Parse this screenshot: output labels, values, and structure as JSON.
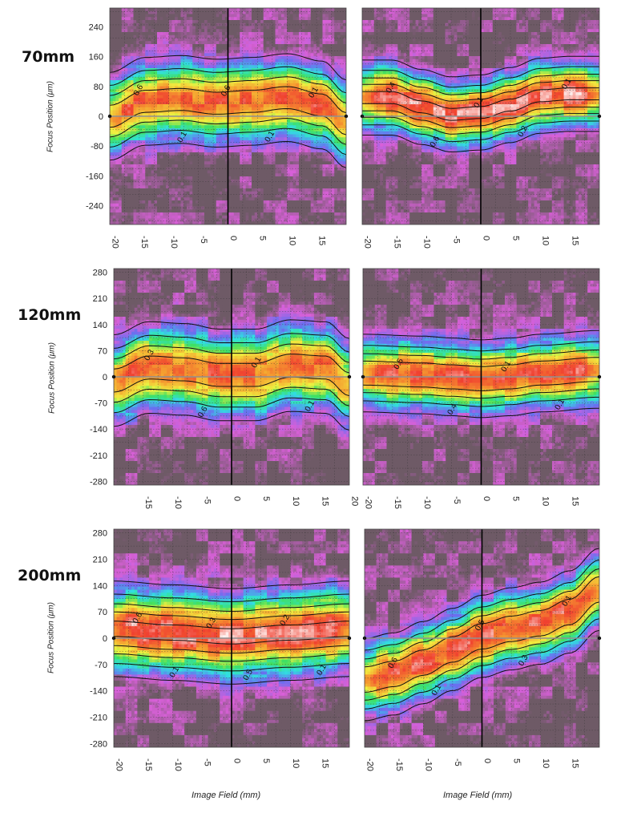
{
  "figure": {
    "x_axis_label": "Image Field (mm)",
    "y_axis_label": "Focus Position (μm)"
  },
  "rows": [
    {
      "label": "70mm"
    },
    {
      "label": "120mm"
    },
    {
      "label": "200mm"
    }
  ],
  "colors": {
    "background": "#ffffff",
    "magenta": "#d860d8",
    "blue": "#6a6ef0",
    "cyan": "#30e0e0",
    "green": "#40e060",
    "yellow": "#f0f040",
    "orange": "#f5a030",
    "red": "#f04030",
    "peak": "#ffffff",
    "noise": "#6e5a66",
    "contour": "#111111",
    "focus_line": "#909090"
  },
  "chart_data": [
    {
      "type": "heatmap",
      "id": "70mm-left",
      "row": "70mm",
      "xlim": [
        -20,
        20
      ],
      "ylim": [
        -290,
        290
      ],
      "x_ticks": [
        -20,
        -15,
        -10,
        -5,
        0,
        5,
        10,
        15
      ],
      "y_ticks": [
        240,
        160,
        80,
        0,
        -80,
        -160,
        -240
      ],
      "grid": true,
      "contour_labels": [
        "0.6",
        "0.1",
        "0.6",
        "0.1",
        "0.1"
      ],
      "peak_curve": {
        "x": [
          -20,
          -14,
          -8,
          -2,
          4,
          10,
          16,
          20
        ],
        "y": [
          0,
          40,
          45,
          35,
          40,
          50,
          30,
          -20
        ]
      },
      "peak_value": 0.8,
      "band_halfwidth_um": 115
    },
    {
      "type": "heatmap",
      "id": "70mm-right",
      "row": "70mm",
      "xlim": [
        -20,
        20
      ],
      "ylim": [
        -290,
        290
      ],
      "x_ticks": [
        -20,
        -15,
        -10,
        -5,
        0,
        5,
        10,
        15
      ],
      "y_ticks": [
        240,
        160,
        80,
        0,
        -80,
        -160,
        -240
      ],
      "grid": true,
      "contour_labels": [
        "0.4",
        "0.6",
        "0.1",
        "0.2",
        "0.1"
      ],
      "peak_curve": {
        "x": [
          -15,
          -10,
          -5,
          0,
          5,
          10,
          15
        ],
        "y": [
          50,
          25,
          5,
          10,
          30,
          55,
          60
        ]
      },
      "peak_value": 0.9,
      "band_halfwidth_um": 95
    },
    {
      "type": "heatmap",
      "id": "120mm-left",
      "row": "120mm",
      "xlim": [
        -20,
        20
      ],
      "ylim": [
        -290,
        290
      ],
      "x_ticks": [
        -15,
        -10,
        -5,
        0,
        5,
        10,
        15,
        20
      ],
      "y_ticks": [
        280,
        210,
        140,
        70,
        0,
        -70,
        -140,
        -210,
        -280
      ],
      "grid": true,
      "contour_labels": [
        "0.3",
        "0.6",
        "0.1",
        "0.1"
      ],
      "peak_curve": {
        "x": [
          -20,
          -14,
          -8,
          -2,
          4,
          10,
          16,
          20
        ],
        "y": [
          -10,
          25,
          20,
          5,
          5,
          30,
          25,
          -20
        ]
      },
      "peak_value": 0.8,
      "band_halfwidth_um": 120
    },
    {
      "type": "heatmap",
      "id": "120mm-right",
      "row": "120mm",
      "xlim": [
        -20,
        20
      ],
      "ylim": [
        -290,
        290
      ],
      "x_ticks": [
        -20,
        -15,
        -10,
        -5,
        0,
        5,
        10,
        15
      ],
      "y_ticks": [
        280,
        210,
        140,
        70,
        0,
        -70,
        -140,
        -210,
        -280
      ],
      "grid": true,
      "contour_labels": [
        "0.5",
        "0.4",
        "0.1",
        "0.1"
      ],
      "peak_curve": {
        "x": [
          -20,
          -10,
          -5,
          0,
          5,
          10,
          20
        ],
        "y": [
          10,
          5,
          0,
          -5,
          0,
          10,
          20
        ]
      },
      "peak_value": 0.85,
      "band_halfwidth_um": 100
    },
    {
      "type": "heatmap",
      "id": "200mm-left",
      "row": "200mm",
      "xlim": [
        -20,
        20
      ],
      "ylim": [
        -290,
        290
      ],
      "x_ticks": [
        -20,
        -15,
        -10,
        -5,
        0,
        5,
        10,
        15
      ],
      "y_ticks": [
        280,
        210,
        140,
        70,
        0,
        -70,
        -140,
        -210,
        -280
      ],
      "grid": true,
      "contour_labels": [
        "0.6",
        "0.1",
        "0.3",
        "0.5",
        "0.2",
        "0.1"
      ],
      "peak_curve": {
        "x": [
          -20,
          -10,
          0,
          10,
          20
        ],
        "y": [
          25,
          15,
          5,
          15,
          25
        ]
      },
      "peak_value": 0.9,
      "band_halfwidth_um": 120
    },
    {
      "type": "heatmap",
      "id": "200mm-right",
      "row": "200mm",
      "xlim": [
        -20,
        20
      ],
      "ylim": [
        -290,
        290
      ],
      "x_ticks": [
        -20,
        -15,
        -10,
        -5,
        0,
        5,
        10,
        15
      ],
      "y_ticks": [
        280,
        210,
        140,
        70,
        0,
        -70,
        -140,
        -210,
        -280
      ],
      "grid": true,
      "contour_labels": [
        "0.6",
        "0.1",
        "0.5",
        "0.3",
        "0.1"
      ],
      "peak_curve": {
        "x": [
          -20,
          -15,
          -10,
          -5,
          0,
          5,
          10,
          15,
          20
        ],
        "y": [
          -110,
          -95,
          -65,
          -30,
          5,
          25,
          40,
          70,
          130
        ]
      },
      "peak_value": 0.85,
      "band_halfwidth_um": 105
    }
  ]
}
